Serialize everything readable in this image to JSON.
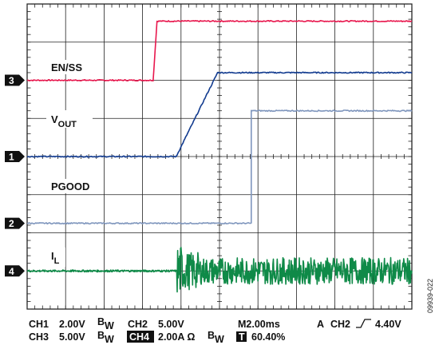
{
  "chart_data": {
    "type": "line",
    "grid": true,
    "x_divisions": 10,
    "y_divisions": 8,
    "time_per_div_ms": 2.0,
    "x_range_ms": [
      0,
      20
    ],
    "y_range_div": [
      -4,
      4
    ],
    "series": [
      {
        "name": "EN/SS",
        "channel_marker": "3",
        "color": "#e8174d",
        "units_per_div": "5.00V",
        "ground_div": 2.0,
        "points": [
          [
            0,
            0.0
          ],
          [
            6.55,
            0.0
          ],
          [
            6.75,
            1.55
          ],
          [
            20,
            1.55
          ]
        ]
      },
      {
        "name": "V",
        "name_subscript": "OUT",
        "channel_marker": "1",
        "color": "#123b8f",
        "units_per_div": "2.00V",
        "ground_div": 0.0,
        "points": [
          [
            0,
            0.0
          ],
          [
            7.75,
            0.0
          ],
          [
            9.9,
            2.2
          ],
          [
            20,
            2.2
          ]
        ]
      },
      {
        "name": "PGOOD",
        "channel_marker": "2",
        "color": "#7f96bd",
        "units_per_div": "5.00V",
        "ground_div": -1.75,
        "points": [
          [
            0,
            0.0
          ],
          [
            11.65,
            0.0
          ],
          [
            11.65,
            2.95
          ],
          [
            20,
            2.95
          ]
        ]
      },
      {
        "name": "I",
        "name_subscript": "L",
        "channel_marker": "4",
        "color": "#0f8a48",
        "units_per_div": "2.00A Ω",
        "ground_div": -3.0,
        "points": [
          [
            0,
            0.0
          ],
          [
            7.8,
            0.0
          ],
          [
            20,
            0.0
          ]
        ],
        "ripple_start_ms": 7.8,
        "ripple_amplitude_div": 0.35
      }
    ]
  },
  "footer": {
    "line1": {
      "ch1": "CH1",
      "ch1_scale": "2.00V",
      "bw": "B",
      "bw_sub": "W",
      "ch2": "CH2",
      "ch2_scale": "5.00V",
      "timebase": "M2.00ms",
      "trigger_mode": "A",
      "trigger_ch": "CH2",
      "trigger_level": "4.40V"
    },
    "line2": {
      "ch3": "CH3",
      "ch3_scale": "5.00V",
      "bw": "B",
      "bw_sub": "W",
      "ch4": "CH4",
      "ch4_scale": "2.00A Ω",
      "bw2": "B",
      "bw2_sub": "W",
      "trigger_marker": "T",
      "trigger_position": "60.40%"
    }
  },
  "figure_ref": "09939-022",
  "colors": {
    "grid": "#222222",
    "frame": "#111111"
  }
}
